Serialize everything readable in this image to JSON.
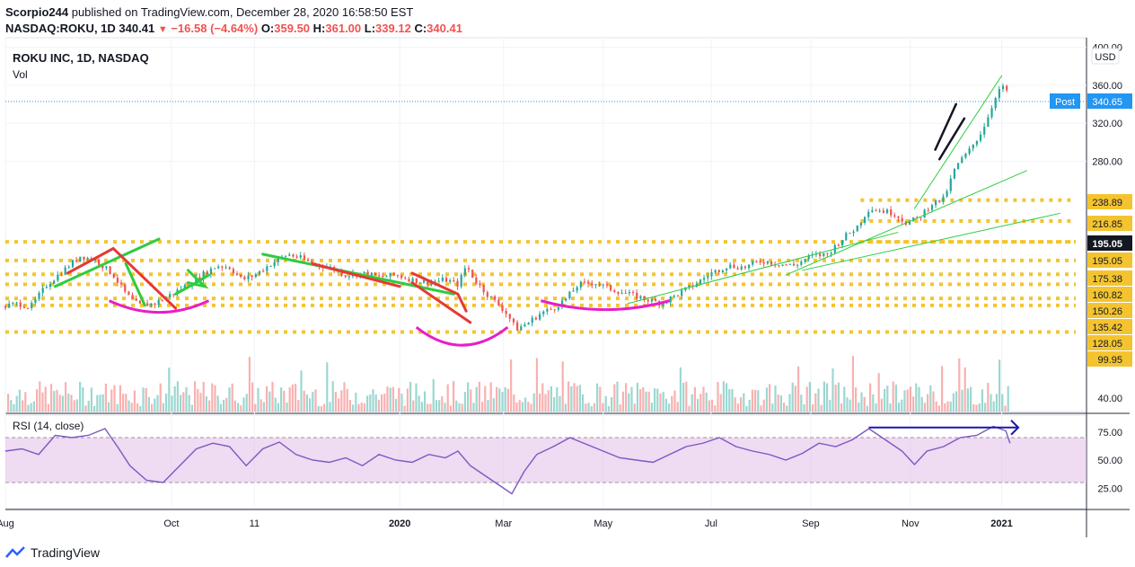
{
  "header": {
    "publisher": "Scorpio244",
    "published_text": "published on TradingView.com, December 28, 2020 16:58:50 EST",
    "symbol_line": "NASDAQ:ROKU, 1D",
    "last": "340.41",
    "change": "−16.58 (−4.64%)",
    "o_label": "O:",
    "o_val": "359.50",
    "h_label": "H:",
    "h_val": "361.00",
    "l_label": "L:",
    "l_val": "339.12",
    "c_label": "C:",
    "c_val": "340.41"
  },
  "brand": {
    "name": "TradingView"
  },
  "chart_data": {
    "type": "candlestick",
    "title": "ROKU INC, 1D, NASDAQ",
    "sub_label": "Vol",
    "currency": "USD",
    "x_ticks": [
      "Aug",
      "Oct",
      "11",
      "2020",
      "Mar",
      "May",
      "Jul",
      "Sep",
      "Nov",
      "2021"
    ],
    "x_tick_pos": [
      0.0,
      2.0,
      3.0,
      4.75,
      6.0,
      7.2,
      8.5,
      9.7,
      10.9,
      12.0
    ],
    "y_ticks": [
      "400.00",
      "360.00",
      "320.00",
      "280.00",
      "40.00"
    ],
    "price_scale_ticks": [
      400,
      360,
      320,
      280
    ],
    "horizontal_levels": [
      {
        "label": "238.89",
        "value": 238.89
      },
      {
        "label": "216.85",
        "value": 216.85
      },
      {
        "label": "195.05",
        "value": 195.05
      },
      {
        "label": "195.05",
        "value": 195.05
      },
      {
        "label": "175.38",
        "value": 175.38
      },
      {
        "label": "160.82",
        "value": 160.82
      },
      {
        "label": "150.26",
        "value": 150.26
      },
      {
        "label": "135.42",
        "value": 135.42
      },
      {
        "label": "128.05",
        "value": 128.05
      },
      {
        "label": "99.95",
        "value": 99.95
      }
    ],
    "post_label": "Post",
    "post_value": "340.65",
    "last_close": 340.41,
    "price_series": [
      [
        0.0,
        127
      ],
      [
        0.15,
        130
      ],
      [
        0.3,
        126
      ],
      [
        0.5,
        150
      ],
      [
        0.7,
        165
      ],
      [
        0.9,
        180
      ],
      [
        1.1,
        175
      ],
      [
        1.3,
        160
      ],
      [
        1.45,
        140
      ],
      [
        1.6,
        128
      ],
      [
        1.8,
        130
      ],
      [
        2.0,
        140
      ],
      [
        2.2,
        150
      ],
      [
        2.4,
        162
      ],
      [
        2.55,
        170
      ],
      [
        2.7,
        168
      ],
      [
        2.85,
        155
      ],
      [
        3.0,
        160
      ],
      [
        3.2,
        172
      ],
      [
        3.4,
        182
      ],
      [
        3.55,
        178
      ],
      [
        3.7,
        172
      ],
      [
        3.9,
        168
      ],
      [
        4.1,
        160
      ],
      [
        4.3,
        162
      ],
      [
        4.5,
        158
      ],
      [
        4.7,
        160
      ],
      [
        4.9,
        155
      ],
      [
        5.1,
        152
      ],
      [
        5.3,
        155
      ],
      [
        5.45,
        150
      ],
      [
        5.55,
        170
      ],
      [
        5.65,
        155
      ],
      [
        5.8,
        140
      ],
      [
        5.95,
        128
      ],
      [
        6.05,
        118
      ],
      [
        6.15,
        103
      ],
      [
        6.3,
        110
      ],
      [
        6.45,
        120
      ],
      [
        6.6,
        125
      ],
      [
        6.75,
        135
      ],
      [
        6.9,
        150
      ],
      [
        7.1,
        152
      ],
      [
        7.3,
        145
      ],
      [
        7.5,
        140
      ],
      [
        7.7,
        135
      ],
      [
        7.9,
        130
      ],
      [
        8.1,
        140
      ],
      [
        8.3,
        150
      ],
      [
        8.5,
        162
      ],
      [
        8.7,
        170
      ],
      [
        8.9,
        168
      ],
      [
        9.1,
        175
      ],
      [
        9.3,
        172
      ],
      [
        9.5,
        170
      ],
      [
        9.7,
        180
      ],
      [
        9.9,
        182
      ],
      [
        10.1,
        200
      ],
      [
        10.25,
        210
      ],
      [
        10.4,
        230
      ],
      [
        10.55,
        228
      ],
      [
        10.7,
        225
      ],
      [
        10.85,
        215
      ],
      [
        11.0,
        220
      ],
      [
        11.15,
        235
      ],
      [
        11.3,
        240
      ],
      [
        11.45,
        275
      ],
      [
        11.6,
        290
      ],
      [
        11.75,
        310
      ],
      [
        11.85,
        330
      ],
      [
        11.95,
        355
      ],
      [
        12.05,
        358
      ],
      [
        12.1,
        340
      ]
    ],
    "rsi": {
      "label": "RSI (14, close)",
      "y_ticks": [
        "75.00",
        "50.00",
        "25.00"
      ],
      "band": [
        30,
        70
      ],
      "series": [
        [
          0.0,
          58
        ],
        [
          0.2,
          60
        ],
        [
          0.4,
          55
        ],
        [
          0.6,
          72
        ],
        [
          0.8,
          70
        ],
        [
          1.0,
          72
        ],
        [
          1.2,
          78
        ],
        [
          1.35,
          62
        ],
        [
          1.5,
          45
        ],
        [
          1.7,
          32
        ],
        [
          1.9,
          30
        ],
        [
          2.1,
          45
        ],
        [
          2.3,
          60
        ],
        [
          2.5,
          65
        ],
        [
          2.7,
          62
        ],
        [
          2.9,
          45
        ],
        [
          3.1,
          60
        ],
        [
          3.3,
          66
        ],
        [
          3.5,
          55
        ],
        [
          3.7,
          50
        ],
        [
          3.9,
          48
        ],
        [
          4.1,
          52
        ],
        [
          4.3,
          45
        ],
        [
          4.5,
          55
        ],
        [
          4.7,
          50
        ],
        [
          4.9,
          48
        ],
        [
          5.1,
          55
        ],
        [
          5.3,
          52
        ],
        [
          5.45,
          58
        ],
        [
          5.6,
          45
        ],
        [
          5.8,
          35
        ],
        [
          6.0,
          25
        ],
        [
          6.1,
          20
        ],
        [
          6.25,
          40
        ],
        [
          6.4,
          55
        ],
        [
          6.6,
          62
        ],
        [
          6.8,
          70
        ],
        [
          7.0,
          64
        ],
        [
          7.2,
          58
        ],
        [
          7.4,
          52
        ],
        [
          7.6,
          50
        ],
        [
          7.8,
          48
        ],
        [
          8.0,
          55
        ],
        [
          8.2,
          62
        ],
        [
          8.4,
          65
        ],
        [
          8.6,
          70
        ],
        [
          8.8,
          62
        ],
        [
          9.0,
          58
        ],
        [
          9.2,
          55
        ],
        [
          9.4,
          50
        ],
        [
          9.6,
          56
        ],
        [
          9.8,
          65
        ],
        [
          10.0,
          62
        ],
        [
          10.2,
          68
        ],
        [
          10.4,
          78
        ],
        [
          10.6,
          68
        ],
        [
          10.8,
          58
        ],
        [
          10.95,
          46
        ],
        [
          11.1,
          58
        ],
        [
          11.3,
          62
        ],
        [
          11.5,
          70
        ],
        [
          11.7,
          72
        ],
        [
          11.9,
          80
        ],
        [
          12.05,
          76
        ],
        [
          12.1,
          65
        ]
      ]
    }
  }
}
